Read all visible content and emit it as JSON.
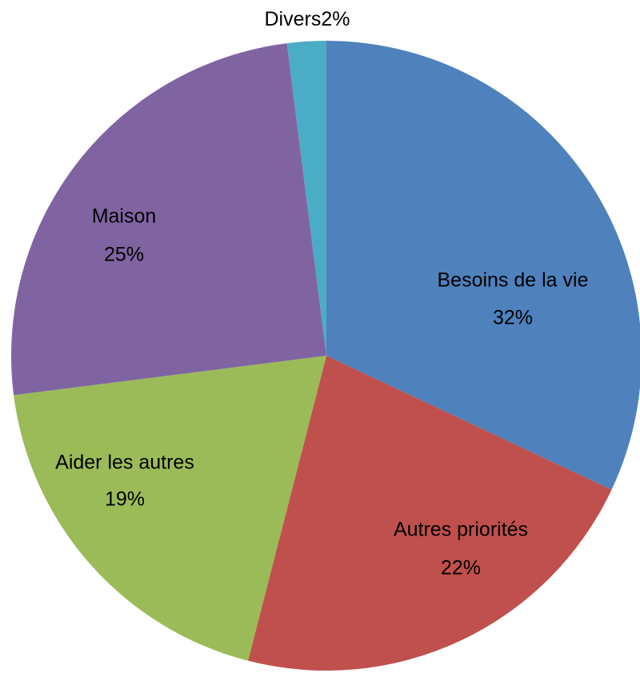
{
  "chart_data": {
    "type": "pie",
    "categories": [
      "Besoins de la vie",
      "Autres priorités",
      "Aider les autres",
      "Maison",
      "Divers"
    ],
    "values": [
      32,
      22,
      19,
      25,
      2
    ],
    "value_labels": [
      "32%",
      "22%",
      "19%",
      "25%",
      "2%"
    ],
    "colors": [
      "#4f81bd",
      "#c0504d",
      "#9bbb59",
      "#8064a2",
      "#4bacc6"
    ]
  }
}
